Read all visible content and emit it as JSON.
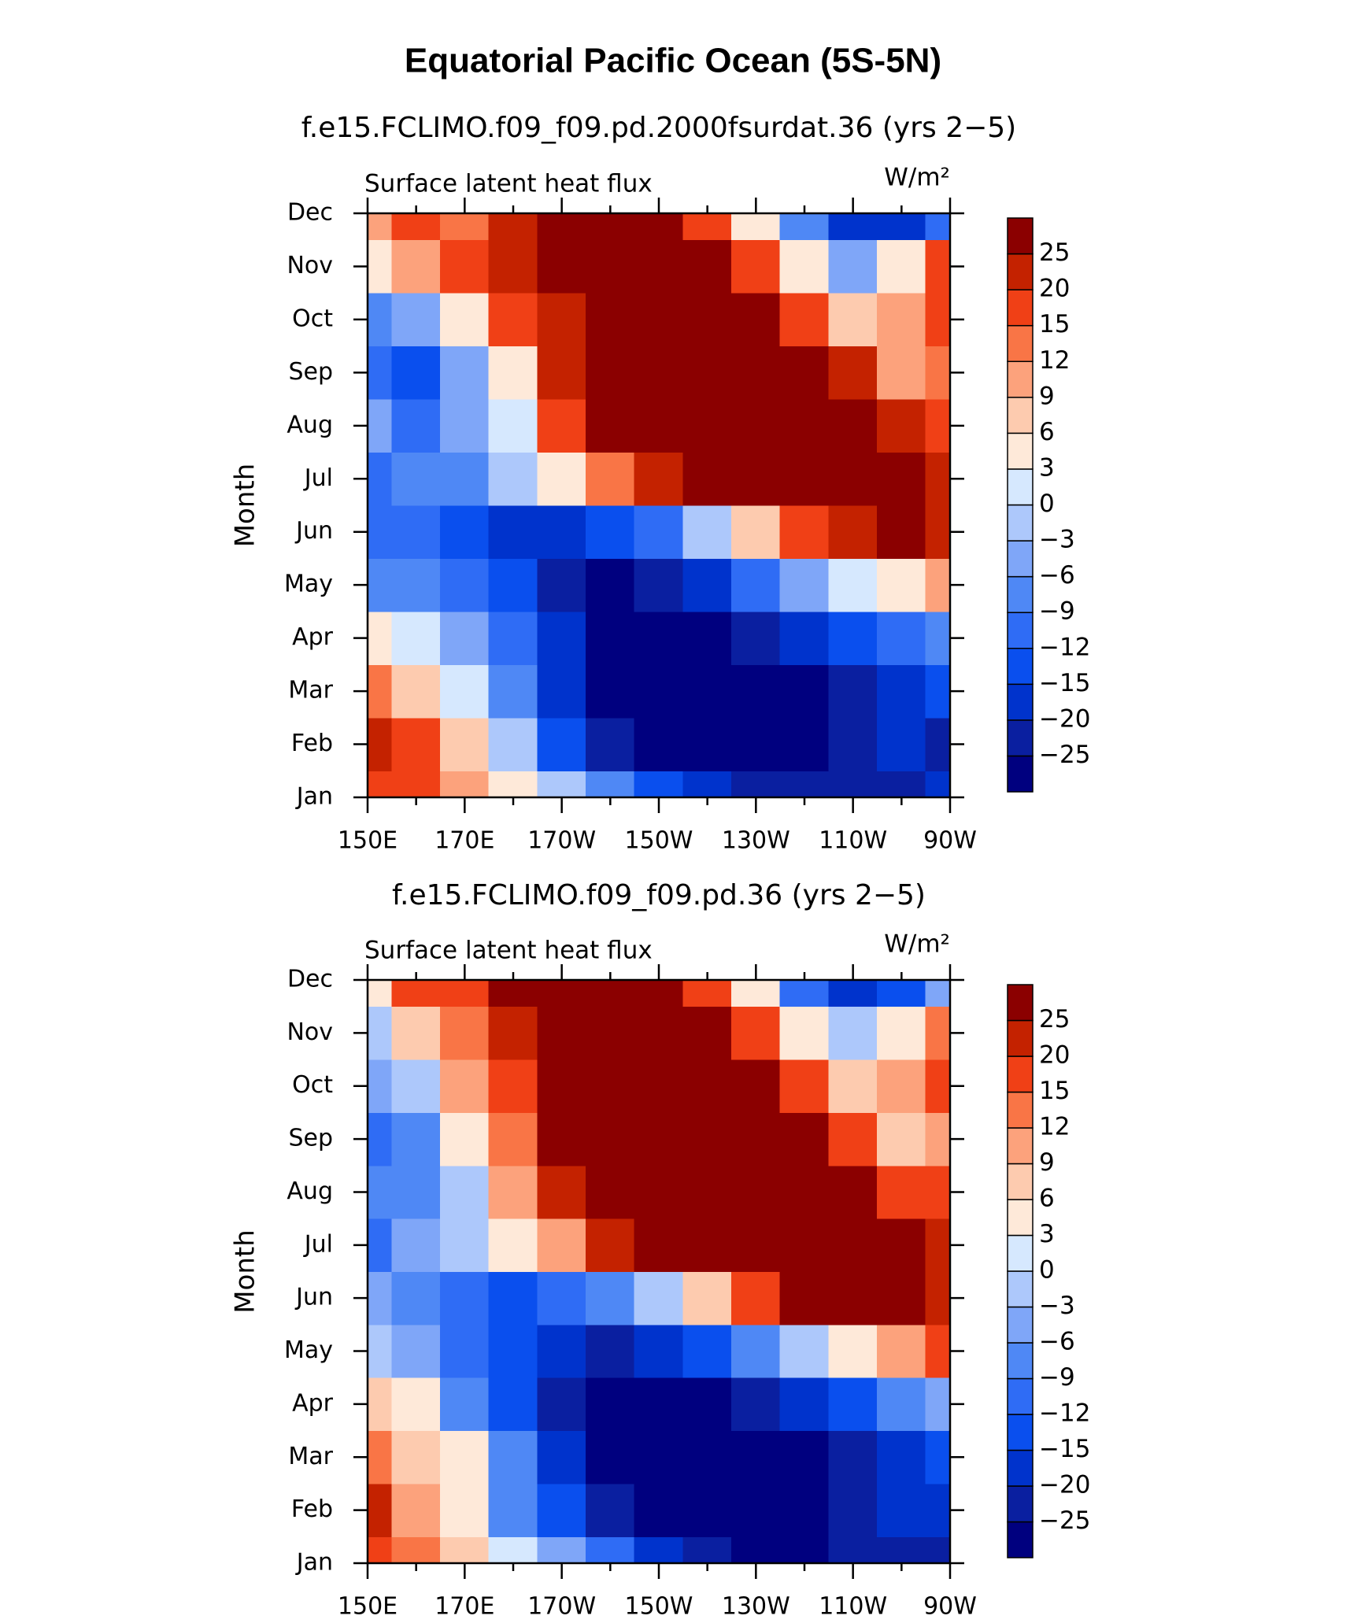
{
  "title": "Equatorial Pacific Ocean (5S-5N)",
  "chart_data": [
    {
      "type": "heatmap",
      "subtitle": "f.e15.FCLIMO.f09_f09.pd.2000fsurdat.36 (yrs 2−5)",
      "left_label": "Surface latent heat flux",
      "units": "W/m²",
      "y_label": "Month",
      "categories": [
        "Jan",
        "Feb",
        "Mar",
        "Apr",
        "May",
        "Jun",
        "Jul",
        "Aug",
        "Sep",
        "Oct",
        "Nov",
        "Dec"
      ],
      "x": [
        150,
        160,
        170,
        180,
        190,
        200,
        210,
        220,
        230,
        240,
        250,
        260,
        270
      ],
      "xlim": [
        150,
        270
      ],
      "xticks": [
        {
          "value": 150,
          "label": "150E"
        },
        {
          "value": 170,
          "label": "170E"
        },
        {
          "value": 190,
          "label": "170W"
        },
        {
          "value": 210,
          "label": "150W"
        },
        {
          "value": 230,
          "label": "130W"
        },
        {
          "value": 250,
          "label": "110W"
        },
        {
          "value": 270,
          "label": "90W"
        }
      ],
      "x_minor_ticks": [
        160,
        180,
        200,
        220,
        240,
        260
      ],
      "values": [
        [
          15,
          15,
          9,
          3,
          -3,
          -9,
          -15,
          -20,
          -25,
          -25,
          -25,
          -25,
          -20
        ],
        [
          20,
          15,
          6,
          -3,
          -15,
          -25,
          -30,
          -30,
          -30,
          -30,
          -25,
          -20,
          -25
        ],
        [
          12,
          6,
          0,
          -9,
          -20,
          -30,
          -30,
          -30,
          -30,
          -30,
          -25,
          -20,
          -15
        ],
        [
          3,
          0,
          -6,
          -12,
          -20,
          -30,
          -30,
          -30,
          -25,
          -20,
          -15,
          -12,
          -9
        ],
        [
          -9,
          -9,
          -12,
          -15,
          -25,
          -30,
          -25,
          -20,
          -12,
          -6,
          0,
          3,
          9
        ],
        [
          -12,
          -12,
          -15,
          -20,
          -20,
          -15,
          -12,
          -3,
          6,
          15,
          20,
          25,
          20
        ],
        [
          -12,
          -9,
          -9,
          -3,
          3,
          12,
          20,
          25,
          30,
          30,
          30,
          28,
          20
        ],
        [
          -6,
          -12,
          -6,
          0,
          15,
          25,
          30,
          30,
          30,
          30,
          28,
          20,
          15
        ],
        [
          -12,
          -15,
          -6,
          3,
          20,
          30,
          30,
          30,
          30,
          28,
          20,
          9,
          12
        ],
        [
          -9,
          -6,
          3,
          15,
          22,
          30,
          30,
          30,
          25,
          15,
          6,
          9,
          15
        ],
        [
          3,
          9,
          15,
          20,
          30,
          30,
          30,
          25,
          15,
          3,
          -6,
          3,
          15
        ],
        [
          9,
          15,
          12,
          20,
          30,
          30,
          25,
          15,
          3,
          -9,
          -20,
          -20,
          -12
        ]
      ],
      "levels": [
        {
          "value": -25,
          "label": "−25"
        },
        {
          "value": -20,
          "label": "−20"
        },
        {
          "value": -15,
          "label": "−15"
        },
        {
          "value": -12,
          "label": "−12"
        },
        {
          "value": -9,
          "label": "−9"
        },
        {
          "value": -6,
          "label": "−6"
        },
        {
          "value": -3,
          "label": "−3"
        },
        0,
        3,
        6,
        9,
        12,
        15,
        20,
        25
      ],
      "colors": [
        "#00007f",
        "#0a1fa0",
        "#0033cc",
        "#0a4fee",
        "#2f6cf5",
        "#4f88f5",
        "#7fa6f8",
        "#adc8fb",
        "#d6e8fe",
        "#fee9d9",
        "#fdcbaf",
        "#fca27c",
        "#f97546",
        "#f04016",
        "#c42200",
        "#8b0000"
      ]
    },
    {
      "type": "heatmap",
      "subtitle": "f.e15.FCLIMO.f09_f09.pd.36 (yrs 2−5)",
      "left_label": "Surface latent heat flux",
      "units": "W/m²",
      "y_label": "Month",
      "categories": [
        "Jan",
        "Feb",
        "Mar",
        "Apr",
        "May",
        "Jun",
        "Jul",
        "Aug",
        "Sep",
        "Oct",
        "Nov",
        "Dec"
      ],
      "x": [
        150,
        160,
        170,
        180,
        190,
        200,
        210,
        220,
        230,
        240,
        250,
        260,
        270
      ],
      "xlim": [
        150,
        270
      ],
      "xticks": [
        {
          "value": 150,
          "label": "150E"
        },
        {
          "value": 170,
          "label": "170E"
        },
        {
          "value": 190,
          "label": "170W"
        },
        {
          "value": 210,
          "label": "150W"
        },
        {
          "value": 230,
          "label": "130W"
        },
        {
          "value": 250,
          "label": "110W"
        },
        {
          "value": 270,
          "label": "90W"
        }
      ],
      "x_minor_ticks": [
        160,
        180,
        200,
        220,
        240,
        260
      ],
      "values": [
        [
          15,
          12,
          6,
          0,
          -6,
          -12,
          -20,
          -25,
          -30,
          -30,
          -25,
          -25,
          -25
        ],
        [
          20,
          9,
          3,
          -9,
          -15,
          -25,
          -30,
          -30,
          -30,
          -30,
          -25,
          -20,
          -20
        ],
        [
          12,
          6,
          3,
          -9,
          -20,
          -30,
          -30,
          -30,
          -30,
          -30,
          -25,
          -20,
          -15
        ],
        [
          6,
          3,
          -9,
          -15,
          -25,
          -30,
          -30,
          -30,
          -25,
          -20,
          -15,
          -9,
          -6
        ],
        [
          -3,
          -6,
          -12,
          -15,
          -20,
          -25,
          -20,
          -15,
          -9,
          -3,
          3,
          9,
          15
        ],
        [
          -6,
          -9,
          -12,
          -15,
          -12,
          -9,
          -3,
          6,
          15,
          25,
          30,
          28,
          20
        ],
        [
          -12,
          -6,
          -3,
          3,
          9,
          20,
          25,
          30,
          30,
          30,
          30,
          28,
          20
        ],
        [
          -9,
          -9,
          -3,
          9,
          20,
          30,
          30,
          30,
          30,
          30,
          25,
          15,
          15
        ],
        [
          -12,
          -9,
          3,
          12,
          25,
          30,
          30,
          30,
          30,
          25,
          15,
          6,
          9
        ],
        [
          -6,
          -3,
          9,
          15,
          25,
          30,
          30,
          30,
          25,
          15,
          6,
          9,
          15
        ],
        [
          -3,
          6,
          12,
          20,
          30,
          30,
          30,
          25,
          15,
          3,
          -3,
          3,
          12
        ],
        [
          3,
          15,
          15,
          25,
          30,
          30,
          25,
          15,
          3,
          -12,
          -20,
          -15,
          -6
        ]
      ],
      "levels": [
        {
          "value": -25,
          "label": "−25"
        },
        {
          "value": -20,
          "label": "−20"
        },
        {
          "value": -15,
          "label": "−15"
        },
        {
          "value": -12,
          "label": "−12"
        },
        {
          "value": -9,
          "label": "−9"
        },
        {
          "value": -6,
          "label": "−6"
        },
        {
          "value": -3,
          "label": "−3"
        },
        0,
        3,
        6,
        9,
        12,
        15,
        20,
        25
      ],
      "colors": [
        "#00007f",
        "#0a1fa0",
        "#0033cc",
        "#0a4fee",
        "#2f6cf5",
        "#4f88f5",
        "#7fa6f8",
        "#adc8fb",
        "#d6e8fe",
        "#fee9d9",
        "#fdcbaf",
        "#fca27c",
        "#f97546",
        "#f04016",
        "#c42200",
        "#8b0000"
      ]
    }
  ]
}
